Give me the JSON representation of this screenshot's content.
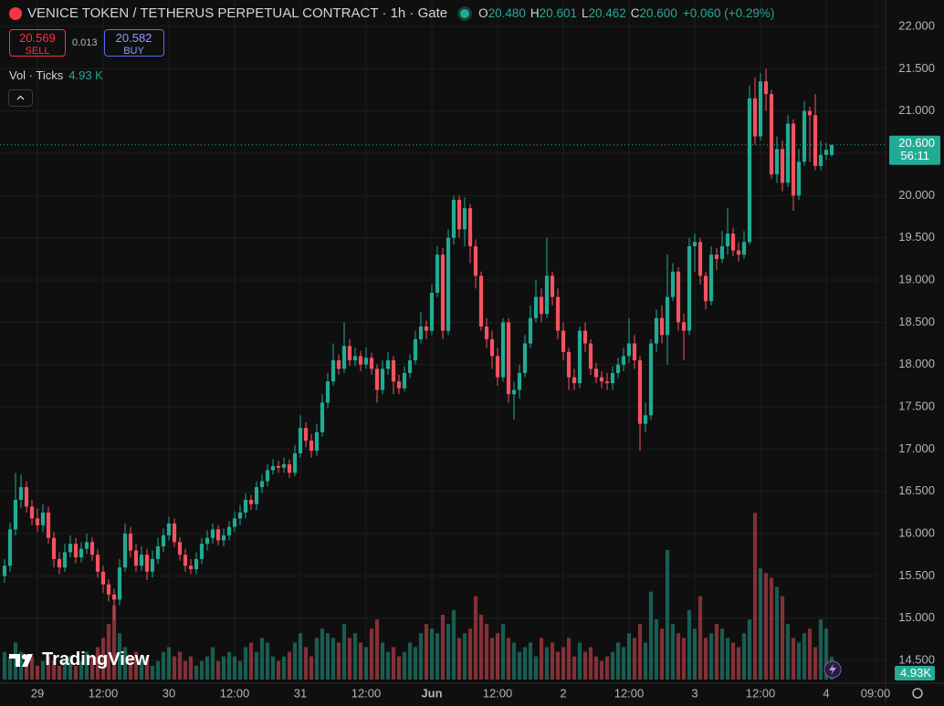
{
  "chart_data": {
    "type": "candlestick",
    "title": "VENICE TOKEN / TETHERUS PERPETUAL CONTRACT · 1h · Gate",
    "legend_ohlc": [
      {
        "key": "O",
        "value": "20.480"
      },
      {
        "key": "H",
        "value": "20.601"
      },
      {
        "key": "L",
        "value": "20.462"
      },
      {
        "key": "C",
        "value": "20.600"
      }
    ],
    "change": "+0.060 (+0.29%)",
    "sell": {
      "price": "20.569",
      "label": "SELL"
    },
    "spread": "0.013",
    "buy": {
      "price": "20.582",
      "label": "BUY"
    },
    "volume_title": "Vol · Ticks",
    "volume_legend": "4.93 K",
    "volume_axis_label": "4.93K",
    "current_price": {
      "value": 20.6,
      "label": "20.600"
    },
    "countdown": "56:11",
    "brand": "TradingView",
    "up_color": "#22ab94",
    "down_color": "#f7525f",
    "volume_up_color": "rgba(34,171,148,0.5)",
    "volume_down_color": "rgba(247,82,95,0.5)",
    "grid": true,
    "xlim": [
      -0.833,
      160.833
    ],
    "ylim": [
      14.274,
      22.313
    ],
    "volume_ylim": [
      0,
      40
    ],
    "xticks": [
      {
        "value": 6,
        "label": "29"
      },
      {
        "value": 18,
        "label": "12:00"
      },
      {
        "value": 30,
        "label": "30"
      },
      {
        "value": 42,
        "label": "12:00"
      },
      {
        "value": 54,
        "label": "31"
      },
      {
        "value": 66,
        "label": "12:00"
      },
      {
        "value": 78,
        "label": "Jun"
      },
      {
        "value": 90,
        "label": "12:00"
      },
      {
        "value": 102,
        "label": "2"
      },
      {
        "value": 114,
        "label": "12:00"
      },
      {
        "value": 126,
        "label": "3"
      },
      {
        "value": 138,
        "label": "12:00"
      },
      {
        "value": 150,
        "label": "4"
      },
      {
        "value": 159,
        "label": "09:00"
      }
    ],
    "yticks": [
      {
        "value": 22,
        "label": "22.000"
      },
      {
        "value": 21.5,
        "label": "21.500"
      },
      {
        "value": 21,
        "label": "21.000"
      },
      {
        "value": 20.5,
        "label": "20.500"
      },
      {
        "value": 20,
        "label": "20.000"
      },
      {
        "value": 19.5,
        "label": "19.500"
      },
      {
        "value": 19,
        "label": "19.000"
      },
      {
        "value": 18.5,
        "label": "18.500"
      },
      {
        "value": 18,
        "label": "18.000"
      },
      {
        "value": 17.5,
        "label": "17.500"
      },
      {
        "value": 17,
        "label": "17.000"
      },
      {
        "value": 16.5,
        "label": "16.500"
      },
      {
        "value": 16,
        "label": "16.000"
      },
      {
        "value": 15.5,
        "label": "15.500"
      },
      {
        "value": 15,
        "label": "15.000"
      },
      {
        "value": 14.5,
        "label": "14.500"
      }
    ],
    "open": [
      15.5,
      15.62,
      16.05,
      16.4,
      16.55,
      16.32,
      16.18,
      16.1,
      16.25,
      15.95,
      15.7,
      15.6,
      15.78,
      15.88,
      15.72,
      15.82,
      15.9,
      15.75,
      15.55,
      15.4,
      15.28,
      15.22,
      15.6,
      16.0,
      15.8,
      15.62,
      15.75,
      15.55,
      15.7,
      15.85,
      15.98,
      16.12,
      15.9,
      15.75,
      15.62,
      15.58,
      15.7,
      15.88,
      15.95,
      16.05,
      15.92,
      15.98,
      16.08,
      16.18,
      16.25,
      16.4,
      16.35,
      16.55,
      16.62,
      16.75,
      16.8,
      16.78,
      16.82,
      16.72,
      16.95,
      17.25,
      17.1,
      16.98,
      17.2,
      17.55,
      17.8,
      18.05,
      17.95,
      18.22,
      18.05,
      18.1,
      18.0,
      18.08,
      17.95,
      17.7,
      17.95,
      18.05,
      17.8,
      17.72,
      17.9,
      18.05,
      18.3,
      18.45,
      18.4,
      18.85,
      19.3,
      18.4,
      19.5,
      19.95,
      19.6,
      19.85,
      19.4,
      19.05,
      18.45,
      18.3,
      18.1,
      17.85,
      18.5,
      17.65,
      17.7,
      17.9,
      18.25,
      18.55,
      18.8,
      18.6,
      19.05,
      18.8,
      18.4,
      18.15,
      17.85,
      17.78,
      18.4,
      18.25,
      17.95,
      17.85,
      17.8,
      17.78,
      17.9,
      18.0,
      18.1,
      18.25,
      18.05,
      17.3,
      17.4,
      18.25,
      18.55,
      18.35,
      18.8,
      19.1,
      18.5,
      18.4,
      19.4,
      19.45,
      19.05,
      18.75,
      19.3,
      19.25,
      19.4,
      19.55,
      19.35,
      19.3,
      19.45,
      21.15,
      20.7,
      21.35,
      21.2,
      20.25,
      20.55,
      20.15,
      20.85,
      20.0,
      20.4,
      21.0,
      20.95,
      20.35,
      20.48,
      20.48
    ],
    "high": [
      15.7,
      16.13,
      16.72,
      16.7,
      16.62,
      16.4,
      16.3,
      16.35,
      16.32,
      16.02,
      15.78,
      15.88,
      15.98,
      15.95,
      15.9,
      16.0,
      15.96,
      15.82,
      15.62,
      15.46,
      15.35,
      15.7,
      16.12,
      16.08,
      15.88,
      15.85,
      15.82,
      15.8,
      15.95,
      16.06,
      16.2,
      16.18,
      15.96,
      15.82,
      15.7,
      15.78,
      15.95,
      16.04,
      16.12,
      16.1,
      16.06,
      16.15,
      16.26,
      16.34,
      16.48,
      16.46,
      16.62,
      16.7,
      16.82,
      16.88,
      16.86,
      16.9,
      16.88,
      17.05,
      17.4,
      17.32,
      17.18,
      17.3,
      17.65,
      17.9,
      18.25,
      18.12,
      18.5,
      18.3,
      18.2,
      18.16,
      18.2,
      18.14,
      18.0,
      18.05,
      18.15,
      18.1,
      17.88,
      17.98,
      18.12,
      18.4,
      18.62,
      18.52,
      18.95,
      19.4,
      19.38,
      19.6,
      20.0,
      20.0,
      19.98,
      19.9,
      19.48,
      19.1,
      18.55,
      18.4,
      18.2,
      18.55,
      18.55,
      17.8,
      18.0,
      18.35,
      18.7,
      19.0,
      18.9,
      19.5,
      19.1,
      18.9,
      18.5,
      18.2,
      17.95,
      18.45,
      18.5,
      18.3,
      18.02,
      17.92,
      17.9,
      17.98,
      18.08,
      18.2,
      18.55,
      18.35,
      18.1,
      17.55,
      18.3,
      18.65,
      18.7,
      19.3,
      19.2,
      19.15,
      18.6,
      19.5,
      19.55,
      19.5,
      19.1,
      19.4,
      19.38,
      19.58,
      19.85,
      19.62,
      19.45,
      19.58,
      21.3,
      21.4,
      21.45,
      21.5,
      21.25,
      20.7,
      20.65,
      20.95,
      20.9,
      20.55,
      21.12,
      21.05,
      21.2,
      20.65,
      20.62,
      20.601
    ],
    "low": [
      15.42,
      15.55,
      15.98,
      16.3,
      16.25,
      16.1,
      16.02,
      16.02,
      15.88,
      15.6,
      15.52,
      15.55,
      15.72,
      15.65,
      15.66,
      15.76,
      15.68,
      15.48,
      15.3,
      15.2,
      14.98,
      15.15,
      15.55,
      15.72,
      15.55,
      15.56,
      15.45,
      15.48,
      15.64,
      15.78,
      15.92,
      15.84,
      15.68,
      15.55,
      15.52,
      15.52,
      15.64,
      15.8,
      15.88,
      15.86,
      15.85,
      15.92,
      16.02,
      16.1,
      16.18,
      16.28,
      16.28,
      16.48,
      16.56,
      16.7,
      16.72,
      16.72,
      16.66,
      16.68,
      16.9,
      17.02,
      16.9,
      16.92,
      17.15,
      17.48,
      17.75,
      17.88,
      17.9,
      17.98,
      17.98,
      17.92,
      17.95,
      17.88,
      17.55,
      17.65,
      17.88,
      17.65,
      17.65,
      17.68,
      17.84,
      18.0,
      18.25,
      18.3,
      18.35,
      18.8,
      18.3,
      18.35,
      19.42,
      19.5,
      19.4,
      19.2,
      18.9,
      18.4,
      18.2,
      17.95,
      17.75,
      17.8,
      17.55,
      17.35,
      17.6,
      17.85,
      18.2,
      18.5,
      18.5,
      18.55,
      18.7,
      18.3,
      18.05,
      17.7,
      17.7,
      17.72,
      18.15,
      17.88,
      17.78,
      17.72,
      17.7,
      17.7,
      17.84,
      17.92,
      18.02,
      17.95,
      16.98,
      17.2,
      17.35,
      18.15,
      18.25,
      18.0,
      18.75,
      18.4,
      18.05,
      18.35,
      19.1,
      18.95,
      18.65,
      18.7,
      19.12,
      19.2,
      19.3,
      19.28,
      19.22,
      19.25,
      19.42,
      20.6,
      20.65,
      21.0,
      20.2,
      20.15,
      20.05,
      20.1,
      19.82,
      19.95,
      20.35,
      20.4,
      20.3,
      20.3,
      20.42,
      20.462
    ],
    "close": [
      15.62,
      16.05,
      16.4,
      16.55,
      16.32,
      16.18,
      16.1,
      16.25,
      15.95,
      15.7,
      15.6,
      15.78,
      15.88,
      15.72,
      15.82,
      15.9,
      15.75,
      15.55,
      15.4,
      15.28,
      15.22,
      15.6,
      16.0,
      15.8,
      15.62,
      15.75,
      15.55,
      15.7,
      15.85,
      15.98,
      16.12,
      15.9,
      15.75,
      15.62,
      15.58,
      15.7,
      15.88,
      15.95,
      16.05,
      15.92,
      15.98,
      16.08,
      16.18,
      16.25,
      16.4,
      16.35,
      16.55,
      16.62,
      16.75,
      16.8,
      16.78,
      16.82,
      16.72,
      16.95,
      17.25,
      17.1,
      16.98,
      17.2,
      17.55,
      17.8,
      18.05,
      17.95,
      18.22,
      18.05,
      18.1,
      18.0,
      18.08,
      17.95,
      17.7,
      17.95,
      18.05,
      17.8,
      17.72,
      17.9,
      18.05,
      18.3,
      18.45,
      18.4,
      18.85,
      19.3,
      18.4,
      19.5,
      19.95,
      19.6,
      19.85,
      19.4,
      19.05,
      18.45,
      18.3,
      18.1,
      17.85,
      18.5,
      17.65,
      17.7,
      17.9,
      18.25,
      18.55,
      18.8,
      18.6,
      19.05,
      18.8,
      18.4,
      18.15,
      17.85,
      17.78,
      18.4,
      18.25,
      17.95,
      17.85,
      17.8,
      17.78,
      17.9,
      18.0,
      18.1,
      18.25,
      18.05,
      17.3,
      17.4,
      18.25,
      18.55,
      18.35,
      18.8,
      19.1,
      18.5,
      18.4,
      19.4,
      19.45,
      19.05,
      18.75,
      19.3,
      19.25,
      19.4,
      19.55,
      19.35,
      19.3,
      19.45,
      21.15,
      20.7,
      21.35,
      21.2,
      20.25,
      20.55,
      20.15,
      20.85,
      20.0,
      20.4,
      21.0,
      20.95,
      20.35,
      20.48,
      20.54,
      20.6
    ],
    "volume": [
      6,
      5,
      8,
      6,
      4,
      5,
      3,
      4,
      5,
      4,
      3,
      4,
      5,
      3,
      4,
      6,
      5,
      7,
      9,
      12,
      16,
      10,
      7,
      5,
      6,
      4,
      5,
      3,
      4,
      6,
      7,
      5,
      6,
      4,
      5,
      3,
      4,
      5,
      7,
      4,
      5,
      6,
      5,
      4,
      7,
      8,
      6,
      9,
      8,
      5,
      4,
      5,
      6,
      8,
      10,
      7,
      5,
      9,
      11,
      10,
      9,
      8,
      12,
      9,
      10,
      8,
      7,
      11,
      13,
      8,
      6,
      7,
      5,
      6,
      8,
      7,
      10,
      12,
      11,
      10,
      14,
      12,
      15,
      9,
      10,
      11,
      18,
      14,
      12,
      9,
      10,
      12,
      9,
      8,
      6,
      7,
      8,
      5,
      9,
      7,
      8,
      6,
      7,
      9,
      5,
      8,
      6,
      7,
      5,
      4,
      5,
      6,
      8,
      7,
      10,
      9,
      12,
      8,
      19,
      13,
      11,
      28,
      12,
      10,
      9,
      15,
      11,
      18,
      9,
      10,
      12,
      11,
      9,
      8,
      7,
      10,
      13,
      36,
      24,
      23,
      22,
      20,
      18,
      12,
      9,
      8,
      10,
      11,
      7,
      13,
      11,
      4.93
    ]
  }
}
